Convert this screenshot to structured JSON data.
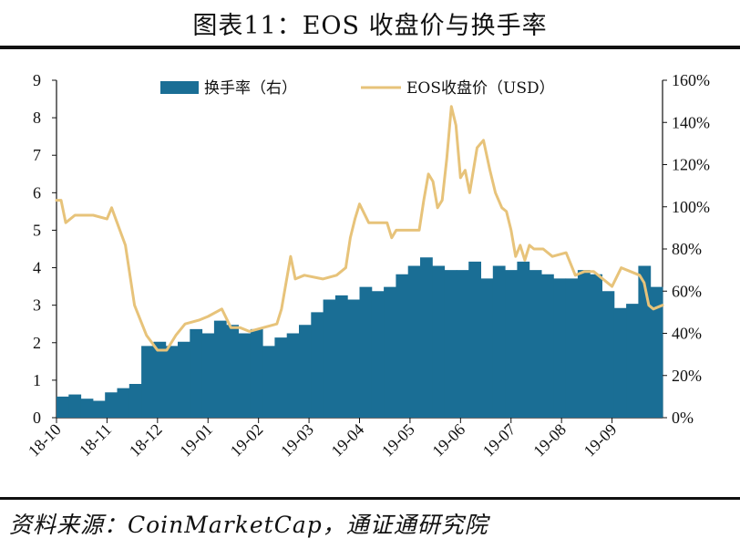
{
  "header": {
    "title": "图表11：EOS 收盘价与换手率"
  },
  "footer": {
    "source": "资料来源：CoinMarketCap，通证通研究院"
  },
  "colors": {
    "bars": "#1a6e95",
    "line": "#e7c37a"
  },
  "chart_data": {
    "type": "bar+line",
    "title": "图表11：EOS 收盘价与换手率",
    "x_tick_labels": [
      "18-10",
      "18-11",
      "18-12",
      "19-01",
      "19-02",
      "19-03",
      "19-04",
      "19-05",
      "19-06",
      "19-07",
      "19-08",
      "19-09"
    ],
    "y_left": {
      "ylim": [
        0,
        9
      ],
      "ticks": [
        "0",
        "1",
        "2",
        "3",
        "4",
        "5",
        "6",
        "7",
        "8",
        "9"
      ]
    },
    "y_right": {
      "ylim": [
        0,
        160
      ],
      "ticks": [
        "0%",
        "20%",
        "40%",
        "60%",
        "80%",
        "100%",
        "120%",
        "140%",
        "160%"
      ]
    },
    "legend": [
      {
        "name": "换手率（右）",
        "kind": "bar"
      },
      {
        "name": "EOS收盘价（USD）",
        "kind": "line"
      }
    ],
    "series": [
      {
        "name": "换手率（右）",
        "type": "bar",
        "note": "weekly approximate reading, in right-axis percent",
        "values": [
          10,
          11,
          9,
          8,
          12,
          14,
          16,
          34,
          36,
          34,
          36,
          42,
          40,
          46,
          44,
          40,
          42,
          34,
          38,
          40,
          44,
          50,
          56,
          58,
          56,
          62,
          60,
          62,
          68,
          72,
          76,
          72,
          70,
          70,
          74,
          66,
          72,
          70,
          74,
          70,
          68,
          66,
          66,
          70,
          68,
          60,
          52,
          54,
          72,
          62
        ]
      },
      {
        "name": "EOS收盘价（USD）",
        "type": "line",
        "note": "approximate reading against the left axis",
        "points": [
          [
            0,
            5.8
          ],
          [
            5,
            5.8
          ],
          [
            10,
            5.2
          ],
          [
            20,
            5.4
          ],
          [
            40,
            5.4
          ],
          [
            55,
            5.3
          ],
          [
            60,
            5.6
          ],
          [
            66,
            5.2
          ],
          [
            75,
            4.6
          ],
          [
            85,
            3.0
          ],
          [
            98,
            2.2
          ],
          [
            110,
            1.8
          ],
          [
            120,
            1.8
          ],
          [
            130,
            2.2
          ],
          [
            140,
            2.5
          ],
          [
            155,
            2.6
          ],
          [
            165,
            2.7
          ],
          [
            180,
            2.9
          ],
          [
            190,
            2.4
          ],
          [
            200,
            2.4
          ],
          [
            210,
            2.3
          ],
          [
            225,
            2.4
          ],
          [
            240,
            2.5
          ],
          [
            245,
            2.9
          ],
          [
            250,
            3.6
          ],
          [
            255,
            4.3
          ],
          [
            260,
            3.7
          ],
          [
            270,
            3.8
          ],
          [
            290,
            3.7
          ],
          [
            305,
            3.8
          ],
          [
            315,
            4.0
          ],
          [
            320,
            4.8
          ],
          [
            325,
            5.3
          ],
          [
            330,
            5.7
          ],
          [
            340,
            5.2
          ],
          [
            350,
            5.2
          ],
          [
            360,
            5.2
          ],
          [
            365,
            4.8
          ],
          [
            370,
            5.0
          ],
          [
            380,
            5.0
          ],
          [
            395,
            5.0
          ],
          [
            400,
            5.8
          ],
          [
            405,
            6.5
          ],
          [
            410,
            6.3
          ],
          [
            415,
            5.6
          ],
          [
            420,
            5.8
          ],
          [
            425,
            6.9
          ],
          [
            430,
            8.3
          ],
          [
            435,
            7.8
          ],
          [
            440,
            6.4
          ],
          [
            445,
            6.6
          ],
          [
            450,
            6.0
          ],
          [
            458,
            7.2
          ],
          [
            465,
            7.4
          ],
          [
            472,
            6.6
          ],
          [
            478,
            6.0
          ],
          [
            485,
            5.6
          ],
          [
            490,
            5.5
          ],
          [
            495,
            5.0
          ],
          [
            500,
            4.3
          ],
          [
            505,
            4.6
          ],
          [
            510,
            4.2
          ],
          [
            515,
            4.6
          ],
          [
            520,
            4.5
          ],
          [
            530,
            4.5
          ],
          [
            540,
            4.3
          ],
          [
            555,
            4.4
          ],
          [
            565,
            3.8
          ],
          [
            575,
            3.9
          ],
          [
            585,
            3.9
          ],
          [
            595,
            3.7
          ],
          [
            605,
            3.5
          ],
          [
            615,
            4.0
          ],
          [
            625,
            3.9
          ],
          [
            635,
            3.8
          ],
          [
            640,
            3.6
          ],
          [
            645,
            3.0
          ],
          [
            650,
            2.9
          ],
          [
            660,
            3.0
          ]
        ]
      }
    ],
    "grid": false,
    "legend_placement": "top"
  }
}
